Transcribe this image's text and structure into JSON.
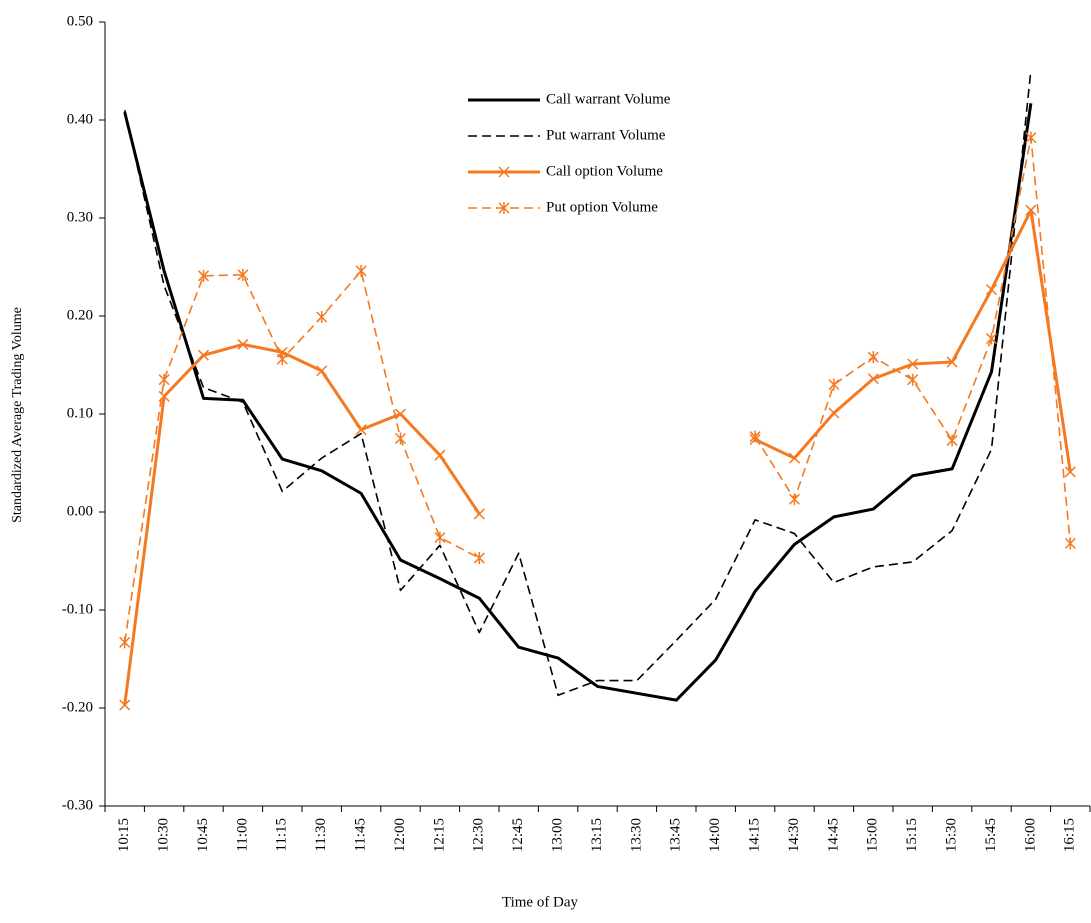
{
  "chart_data": {
    "type": "line",
    "xlabel": "Time of Day",
    "ylabel": "Standardized Average Trading Volume",
    "categories": [
      "10:15",
      "10:30",
      "10:45",
      "11:00",
      "11:15",
      "11:30",
      "11:45",
      "12:00",
      "12:15",
      "12:30",
      "12:45",
      "13:00",
      "13:15",
      "13:30",
      "13:45",
      "14:00",
      "14:15",
      "14:30",
      "14:45",
      "15:00",
      "15:15",
      "15:30",
      "15:45",
      "16:00",
      "16:15"
    ],
    "ylim": [
      -0.3,
      0.5
    ],
    "yticks": [
      {
        "value": -0.3,
        "label": "-0.30"
      },
      {
        "value": -0.2,
        "label": "-0.20"
      },
      {
        "value": -0.1,
        "label": "-0.10"
      },
      {
        "value": 0,
        "label": "0.00"
      },
      {
        "value": 0.1,
        "label": "0.10"
      },
      {
        "value": 0.2,
        "label": "0.20"
      },
      {
        "value": 0.3,
        "label": "0.30"
      },
      {
        "value": 0.4,
        "label": "0.40"
      },
      {
        "value": 0.5,
        "label": "0.50"
      }
    ],
    "series": [
      {
        "name": "Call warrant Volume",
        "color": "#000000",
        "dash": false,
        "width": 3,
        "marker": null,
        "values": [
          0.408,
          0.246,
          0.116,
          0.114,
          0.054,
          0.042,
          0.019,
          -0.049,
          -0.068,
          -0.088,
          -0.138,
          -0.149,
          -0.178,
          -0.185,
          -0.192,
          -0.151,
          -0.081,
          -0.033,
          -0.005,
          0.003,
          0.037,
          0.044,
          0.143,
          0.417,
          null
        ]
      },
      {
        "name": "Put warrant Volume",
        "color": "#000000",
        "dash": true,
        "width": 1.6,
        "marker": null,
        "values": [
          0.41,
          0.231,
          0.127,
          0.112,
          0.021,
          0.055,
          0.08,
          -0.08,
          -0.034,
          -0.123,
          -0.042,
          -0.187,
          -0.172,
          -0.172,
          -0.131,
          -0.089,
          -0.008,
          -0.022,
          -0.072,
          -0.056,
          -0.051,
          -0.019,
          0.064,
          0.451,
          null
        ]
      },
      {
        "name": "Call option Volume",
        "color": "#f47920",
        "dash": false,
        "width": 3,
        "marker": "x",
        "values": [
          -0.197,
          0.118,
          0.16,
          0.171,
          0.163,
          0.144,
          0.084,
          0.1,
          0.058,
          -0.002,
          null,
          null,
          null,
          null,
          null,
          null,
          0.074,
          0.055,
          0.101,
          0.136,
          0.151,
          0.153,
          0.227,
          0.308,
          0.041
        ]
      },
      {
        "name": "Put option Volume",
        "color": "#f47920",
        "dash": true,
        "width": 1.6,
        "marker": "asterisk",
        "values": [
          -0.133,
          0.135,
          0.241,
          0.242,
          0.156,
          0.199,
          0.246,
          0.075,
          -0.026,
          -0.047,
          null,
          null,
          null,
          null,
          null,
          null,
          0.077,
          0.013,
          0.13,
          0.158,
          0.135,
          0.073,
          0.177,
          0.382,
          -0.032
        ]
      }
    ]
  }
}
